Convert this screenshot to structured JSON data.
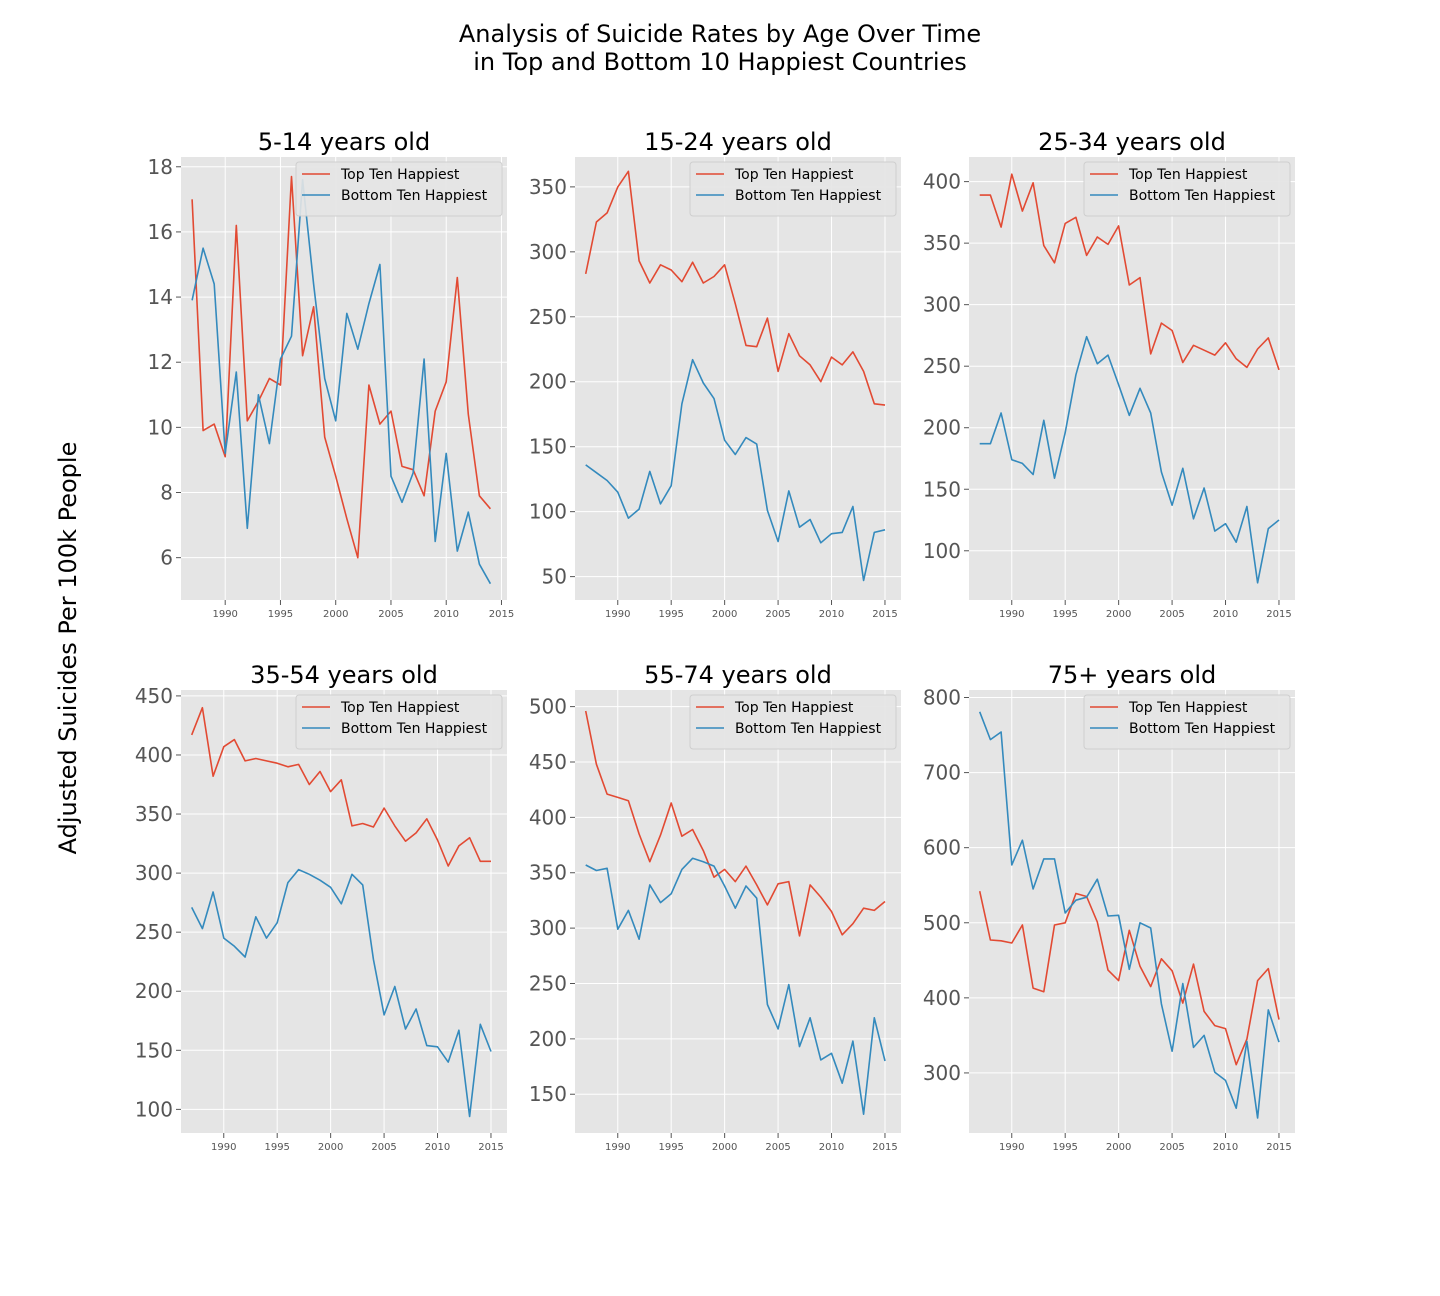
{
  "figure": {
    "title": "Analysis of Suicide Rates by Age Over Time\n in Top and Bottom 10 Happiest Countries",
    "ylabel": "Adjusted Suicides Per 100k People",
    "colors": {
      "top": "#e24a33",
      "bottom": "#348abd",
      "background": "#e5e5e5",
      "grid": "#ffffff"
    }
  },
  "chart_data": [
    {
      "type": "line",
      "title": "5-14 years old",
      "xlim": [
        1986,
        2015.5
      ],
      "ylim": [
        4.7,
        18.3
      ],
      "xticks": [
        1990,
        1995,
        2000,
        2005,
        2010,
        2015
      ],
      "yticks": [
        6,
        8,
        10,
        12,
        14,
        16,
        18
      ],
      "legend": "top-right",
      "series": [
        {
          "name": "Top Ten Happiest",
          "x": [
            1987,
            1988,
            1989,
            1990,
            1991,
            1992,
            1993,
            1994,
            1995,
            1996,
            1997,
            1998,
            1999,
            2000,
            2001,
            2002,
            2003,
            2004,
            2005,
            2006,
            2007,
            2008,
            2009,
            2010,
            2011,
            2012,
            2013,
            2014
          ],
          "values": [
            17.0,
            9.9,
            10.1,
            9.1,
            16.2,
            10.2,
            10.8,
            11.5,
            11.3,
            17.7,
            12.2,
            13.7,
            9.7,
            8.5,
            7.2,
            6.0,
            11.3,
            10.1,
            10.5,
            8.8,
            8.7,
            7.9,
            10.5,
            11.4,
            14.6,
            10.4,
            7.9,
            7.5
          ]
        },
        {
          "name": "Bottom Ten Happiest",
          "x": [
            1987,
            1988,
            1989,
            1990,
            1991,
            1992,
            1993,
            1994,
            1995,
            1996,
            1997,
            1998,
            1999,
            2000,
            2001,
            2002,
            2003,
            2004,
            2005,
            2006,
            2007,
            2008,
            2009,
            2010,
            2011,
            2012,
            2013,
            2014
          ],
          "values": [
            13.9,
            15.5,
            14.4,
            9.2,
            11.7,
            6.9,
            11.0,
            9.5,
            12.1,
            12.8,
            17.6,
            14.4,
            11.5,
            10.2,
            13.5,
            12.4,
            13.8,
            15.0,
            8.5,
            7.7,
            8.6,
            12.1,
            6.5,
            9.2,
            6.2,
            7.4,
            5.8,
            5.2
          ]
        }
      ]
    },
    {
      "type": "line",
      "title": "15-24 years old",
      "xlim": [
        1986,
        2016.5
      ],
      "ylim": [
        32,
        373
      ],
      "xticks": [
        1990,
        1995,
        2000,
        2005,
        2010,
        2015
      ],
      "yticks": [
        50,
        100,
        150,
        200,
        250,
        300,
        350
      ],
      "legend": "top-right",
      "series": [
        {
          "name": "Top Ten Happiest",
          "x": [
            1987,
            1988,
            1989,
            1990,
            1991,
            1992,
            1993,
            1994,
            1995,
            1996,
            1997,
            1998,
            1999,
            2000,
            2001,
            2002,
            2003,
            2004,
            2005,
            2006,
            2007,
            2008,
            2009,
            2010,
            2011,
            2012,
            2013,
            2014,
            2015
          ],
          "values": [
            283,
            323,
            330,
            350,
            362,
            293,
            276,
            290,
            286,
            277,
            292,
            276,
            281,
            290,
            260,
            228,
            227,
            249,
            208,
            237,
            220,
            213,
            200,
            219,
            213,
            223,
            208,
            183,
            182
          ]
        },
        {
          "name": "Bottom Ten Happiest",
          "x": [
            1987,
            1988,
            1989,
            1990,
            1991,
            1992,
            1993,
            1994,
            1995,
            1996,
            1997,
            1998,
            1999,
            2000,
            2001,
            2002,
            2003,
            2004,
            2005,
            2006,
            2007,
            2008,
            2009,
            2010,
            2011,
            2012,
            2013,
            2014,
            2015
          ],
          "values": [
            136,
            130,
            124,
            115,
            95,
            102,
            131,
            106,
            120,
            183,
            217,
            199,
            187,
            155,
            144,
            157,
            152,
            101,
            77,
            116,
            88,
            94,
            76,
            83,
            84,
            104,
            47,
            84,
            86
          ]
        }
      ]
    },
    {
      "type": "line",
      "title": "25-34 years old",
      "xlim": [
        1986,
        2016.5
      ],
      "ylim": [
        60,
        420
      ],
      "xticks": [
        1990,
        1995,
        2000,
        2005,
        2010,
        2015
      ],
      "yticks": [
        100,
        150,
        200,
        250,
        300,
        350,
        400
      ],
      "legend": "top-right",
      "series": [
        {
          "name": "Top Ten Happiest",
          "x": [
            1987,
            1988,
            1989,
            1990,
            1991,
            1992,
            1993,
            1994,
            1995,
            1996,
            1997,
            1998,
            1999,
            2000,
            2001,
            2002,
            2003,
            2004,
            2005,
            2006,
            2007,
            2008,
            2009,
            2010,
            2011,
            2012,
            2013,
            2014,
            2015
          ],
          "values": [
            389,
            389,
            363,
            406,
            376,
            399,
            348,
            334,
            366,
            371,
            340,
            355,
            349,
            364,
            316,
            322,
            260,
            285,
            279,
            253,
            267,
            263,
            259,
            269,
            256,
            249,
            264,
            273,
            247
          ]
        },
        {
          "name": "Bottom Ten Happiest",
          "x": [
            1987,
            1988,
            1989,
            1990,
            1991,
            1992,
            1993,
            1994,
            1995,
            1996,
            1997,
            1998,
            1999,
            2000,
            2001,
            2002,
            2003,
            2004,
            2005,
            2006,
            2007,
            2008,
            2009,
            2010,
            2011,
            2012,
            2013,
            2014,
            2015
          ],
          "values": [
            187,
            187,
            212,
            174,
            171,
            162,
            206,
            159,
            196,
            243,
            274,
            252,
            259,
            235,
            210,
            232,
            212,
            164,
            137,
            167,
            126,
            151,
            116,
            122,
            107,
            136,
            74,
            118,
            125
          ]
        }
      ]
    },
    {
      "type": "line",
      "title": "35-54 years old",
      "xlim": [
        1986,
        2016.5
      ],
      "ylim": [
        80,
        455
      ],
      "xticks": [
        1990,
        1995,
        2000,
        2005,
        2010,
        2015
      ],
      "yticks": [
        100,
        150,
        200,
        250,
        300,
        350,
        400,
        450
      ],
      "legend": "top-right",
      "series": [
        {
          "name": "Top Ten Happiest",
          "x": [
            1987,
            1988,
            1989,
            1990,
            1991,
            1992,
            1993,
            1994,
            1995,
            1996,
            1997,
            1998,
            1999,
            2000,
            2001,
            2002,
            2003,
            2004,
            2005,
            2006,
            2007,
            2008,
            2009,
            2010,
            2011,
            2012,
            2013,
            2014,
            2015
          ],
          "values": [
            417,
            440,
            382,
            407,
            413,
            395,
            397,
            395,
            393,
            390,
            392,
            375,
            386,
            369,
            379,
            340,
            342,
            339,
            355,
            340,
            327,
            334,
            346,
            328,
            306,
            323,
            330,
            310,
            310
          ]
        },
        {
          "name": "Bottom Ten Happiest",
          "x": [
            1987,
            1988,
            1989,
            1990,
            1991,
            1992,
            1993,
            1994,
            1995,
            1996,
            1997,
            1998,
            1999,
            2000,
            2001,
            2002,
            2003,
            2004,
            2005,
            2006,
            2007,
            2008,
            2009,
            2010,
            2011,
            2012,
            2013,
            2014,
            2015
          ],
          "values": [
            271,
            253,
            284,
            245,
            238,
            229,
            263,
            245,
            258,
            292,
            303,
            299,
            294,
            288,
            274,
            299,
            290,
            227,
            180,
            204,
            168,
            185,
            154,
            153,
            140,
            167,
            94,
            172,
            149
          ]
        }
      ]
    },
    {
      "type": "line",
      "title": "55-74 years old",
      "xlim": [
        1986,
        2016.5
      ],
      "ylim": [
        115,
        515
      ],
      "xticks": [
        1990,
        1995,
        2000,
        2005,
        2010,
        2015
      ],
      "yticks": [
        150,
        200,
        250,
        300,
        350,
        400,
        450,
        500
      ],
      "legend": "top-right",
      "series": [
        {
          "name": "Top Ten Happiest",
          "x": [
            1987,
            1988,
            1989,
            1990,
            1991,
            1992,
            1993,
            1994,
            1995,
            1996,
            1997,
            1998,
            1999,
            2000,
            2001,
            2002,
            2003,
            2004,
            2005,
            2006,
            2007,
            2008,
            2009,
            2010,
            2011,
            2012,
            2013,
            2014,
            2015
          ],
          "values": [
            496,
            448,
            421,
            418,
            415,
            385,
            360,
            384,
            413,
            383,
            389,
            370,
            346,
            353,
            342,
            356,
            339,
            321,
            340,
            342,
            293,
            339,
            328,
            315,
            294,
            304,
            318,
            316,
            324
          ]
        },
        {
          "name": "Bottom Ten Happiest",
          "x": [
            1987,
            1988,
            1989,
            1990,
            1991,
            1992,
            1993,
            1994,
            1995,
            1996,
            1997,
            1998,
            1999,
            2000,
            2001,
            2002,
            2003,
            2004,
            2005,
            2006,
            2007,
            2008,
            2009,
            2010,
            2011,
            2012,
            2013,
            2014,
            2015
          ],
          "values": [
            357,
            352,
            354,
            299,
            316,
            290,
            339,
            323,
            331,
            353,
            363,
            360,
            356,
            338,
            318,
            338,
            327,
            231,
            209,
            249,
            193,
            219,
            181,
            187,
            160,
            198,
            132,
            219,
            180
          ]
        }
      ]
    },
    {
      "type": "line",
      "title": "75+ years old",
      "xlim": [
        1986,
        2016.5
      ],
      "ylim": [
        220,
        810
      ],
      "xticks": [
        1990,
        1995,
        2000,
        2005,
        2010,
        2015
      ],
      "yticks": [
        300,
        400,
        500,
        600,
        700,
        800
      ],
      "legend": "top-right",
      "series": [
        {
          "name": "Top Ten Happiest",
          "x": [
            1987,
            1988,
            1989,
            1990,
            1991,
            1992,
            1993,
            1994,
            1995,
            1996,
            1997,
            1998,
            1999,
            2000,
            2001,
            2002,
            2003,
            2004,
            2005,
            2006,
            2007,
            2008,
            2009,
            2010,
            2011,
            2012,
            2013,
            2014,
            2015
          ],
          "values": [
            542,
            477,
            476,
            473,
            497,
            413,
            408,
            497,
            500,
            539,
            535,
            501,
            437,
            423,
            490,
            442,
            415,
            452,
            436,
            393,
            445,
            382,
            363,
            359,
            311,
            345,
            423,
            439,
            371
          ]
        },
        {
          "name": "Bottom Ten Happiest",
          "x": [
            1987,
            1988,
            1989,
            1990,
            1991,
            1992,
            1993,
            1994,
            1995,
            1996,
            1997,
            1998,
            1999,
            2000,
            2001,
            2002,
            2003,
            2004,
            2005,
            2006,
            2007,
            2008,
            2009,
            2010,
            2011,
            2012,
            2013,
            2014,
            2015
          ],
          "values": [
            781,
            744,
            754,
            577,
            610,
            545,
            585,
            585,
            513,
            530,
            534,
            558,
            509,
            510,
            438,
            500,
            493,
            392,
            329,
            419,
            334,
            350,
            301,
            290,
            253,
            342,
            240,
            384,
            341
          ]
        }
      ]
    }
  ]
}
